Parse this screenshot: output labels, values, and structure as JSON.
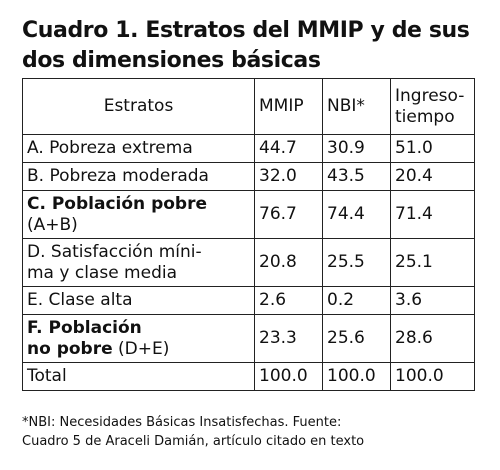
{
  "title": "Cuadro 1. Estratos del MMIP y de sus dos dimensiones básicas",
  "headers": {
    "estratos": "Estratos",
    "mmip": "MMIP",
    "nbi": "NBI*",
    "ingreso_line1": "Ingreso-",
    "ingreso_line2": "tiempo"
  },
  "rows": [
    {
      "label": "A. Pobreza extrema",
      "mmip": "44.7",
      "nbi": "30.9",
      "ingreso": "51.0"
    },
    {
      "label": "B. Pobreza moderada",
      "mmip": "32.0",
      "nbi": "43.5",
      "ingreso": "20.4"
    },
    {
      "label_bold": "C. Población pobre",
      "label_sub": "(A+B)",
      "mmip": "76.7",
      "nbi": "74.4",
      "ingreso": "71.4"
    },
    {
      "label_line1": "D. Satisfacción míni-",
      "label_line2": "ma y clase media",
      "mmip": "20.8",
      "nbi": "25.5",
      "ingreso": "25.1"
    },
    {
      "label": "E. Clase alta",
      "mmip": "2.6",
      "nbi": "0.2",
      "ingreso": "3.6"
    },
    {
      "label_bold_line1": "F. Población",
      "label_bold_line2": "no pobre",
      "label_suffix": " (D+E)",
      "mmip": "23.3",
      "nbi": "25.6",
      "ingreso": "28.6"
    },
    {
      "label": "Total",
      "mmip": "100.0",
      "nbi": "100.0",
      "ingreso": "100.0"
    }
  ],
  "footnote": {
    "line1": "*NBI: Necesidades Básicas Insatisfechas. Fuente:",
    "line2": "Cuadro 5 de Araceli Damián, artículo citado en texto"
  }
}
